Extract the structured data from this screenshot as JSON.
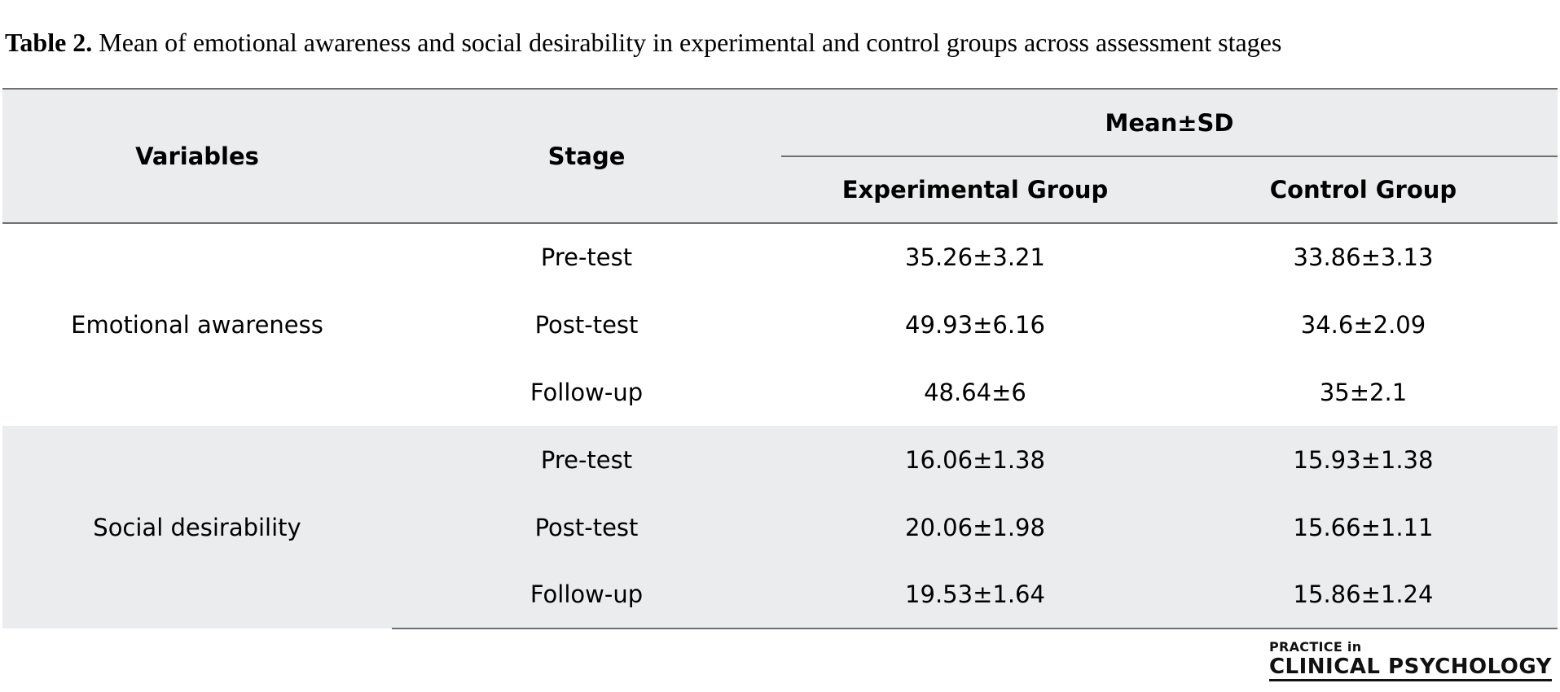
{
  "caption": {
    "label": "Table 2.",
    "text": " Mean of emotional awareness and social desirability in experimental and control groups across assessment stages"
  },
  "table": {
    "headers": {
      "variables": "Variables",
      "stage": "Stage",
      "group": "Mean±SD",
      "experimental": "Experimental Group",
      "control": "Control Group"
    },
    "rows": [
      {
        "variable": "Emotional awareness",
        "stages": [
          {
            "stage": "Pre-test",
            "experimental": "35.26±3.21",
            "control": "33.86±3.13"
          },
          {
            "stage": "Post-test",
            "experimental": "49.93±6.16",
            "control": "34.6±2.09"
          },
          {
            "stage": "Follow-up",
            "experimental": "48.64±6",
            "control": "35±2.1"
          }
        ]
      },
      {
        "variable": "Social desirability",
        "stages": [
          {
            "stage": "Pre-test",
            "experimental": "16.06±1.38",
            "control": "15.93±1.38"
          },
          {
            "stage": "Post-test",
            "experimental": "20.06±1.98",
            "control": "15.66±1.11"
          },
          {
            "stage": "Follow-up",
            "experimental": "19.53±1.64",
            "control": "15.86±1.24"
          }
        ]
      }
    ]
  },
  "logo": {
    "line1": "PRACTICE in",
    "line2": "CLINICAL PSYCHOLOGY"
  }
}
